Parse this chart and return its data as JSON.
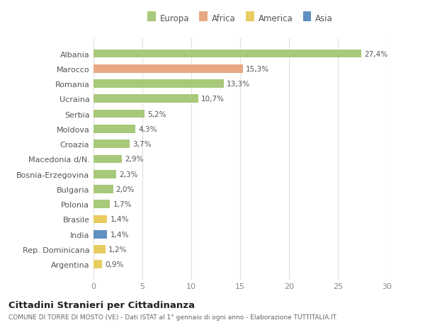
{
  "categories": [
    "Albania",
    "Marocco",
    "Romania",
    "Ucraina",
    "Serbia",
    "Moldova",
    "Croazia",
    "Macedonia d/N.",
    "Bosnia-Erzegovina",
    "Bulgaria",
    "Polonia",
    "Brasile",
    "India",
    "Rep. Dominicana",
    "Argentina"
  ],
  "values": [
    27.4,
    15.3,
    13.3,
    10.7,
    5.2,
    4.3,
    3.7,
    2.9,
    2.3,
    2.0,
    1.7,
    1.4,
    1.4,
    1.2,
    0.9
  ],
  "labels": [
    "27,4%",
    "15,3%",
    "13,3%",
    "10,7%",
    "5,2%",
    "4,3%",
    "3,7%",
    "2,9%",
    "2,3%",
    "2,0%",
    "1,7%",
    "1,4%",
    "1,4%",
    "1,2%",
    "0,9%"
  ],
  "continents": [
    "Europa",
    "Africa",
    "Europa",
    "Europa",
    "Europa",
    "Europa",
    "Europa",
    "Europa",
    "Europa",
    "Europa",
    "Europa",
    "America",
    "Asia",
    "America",
    "America"
  ],
  "colors": {
    "Europa": "#a8c87a",
    "Africa": "#e8a882",
    "America": "#e8cc60",
    "Asia": "#6090c0"
  },
  "xlim": [
    0,
    30
  ],
  "xticks": [
    0,
    5,
    10,
    15,
    20,
    25,
    30
  ],
  "title": "Cittadini Stranieri per Cittadinanza",
  "subtitle": "COMUNE DI TORRE DI MOSTO (VE) - Dati ISTAT al 1° gennaio di ogni anno - Elaborazione TUTTITALIA.IT",
  "background_color": "#ffffff",
  "grid_color": "#e0e0e0",
  "bar_height": 0.55,
  "legend_order": [
    "Europa",
    "Africa",
    "America",
    "Asia"
  ]
}
